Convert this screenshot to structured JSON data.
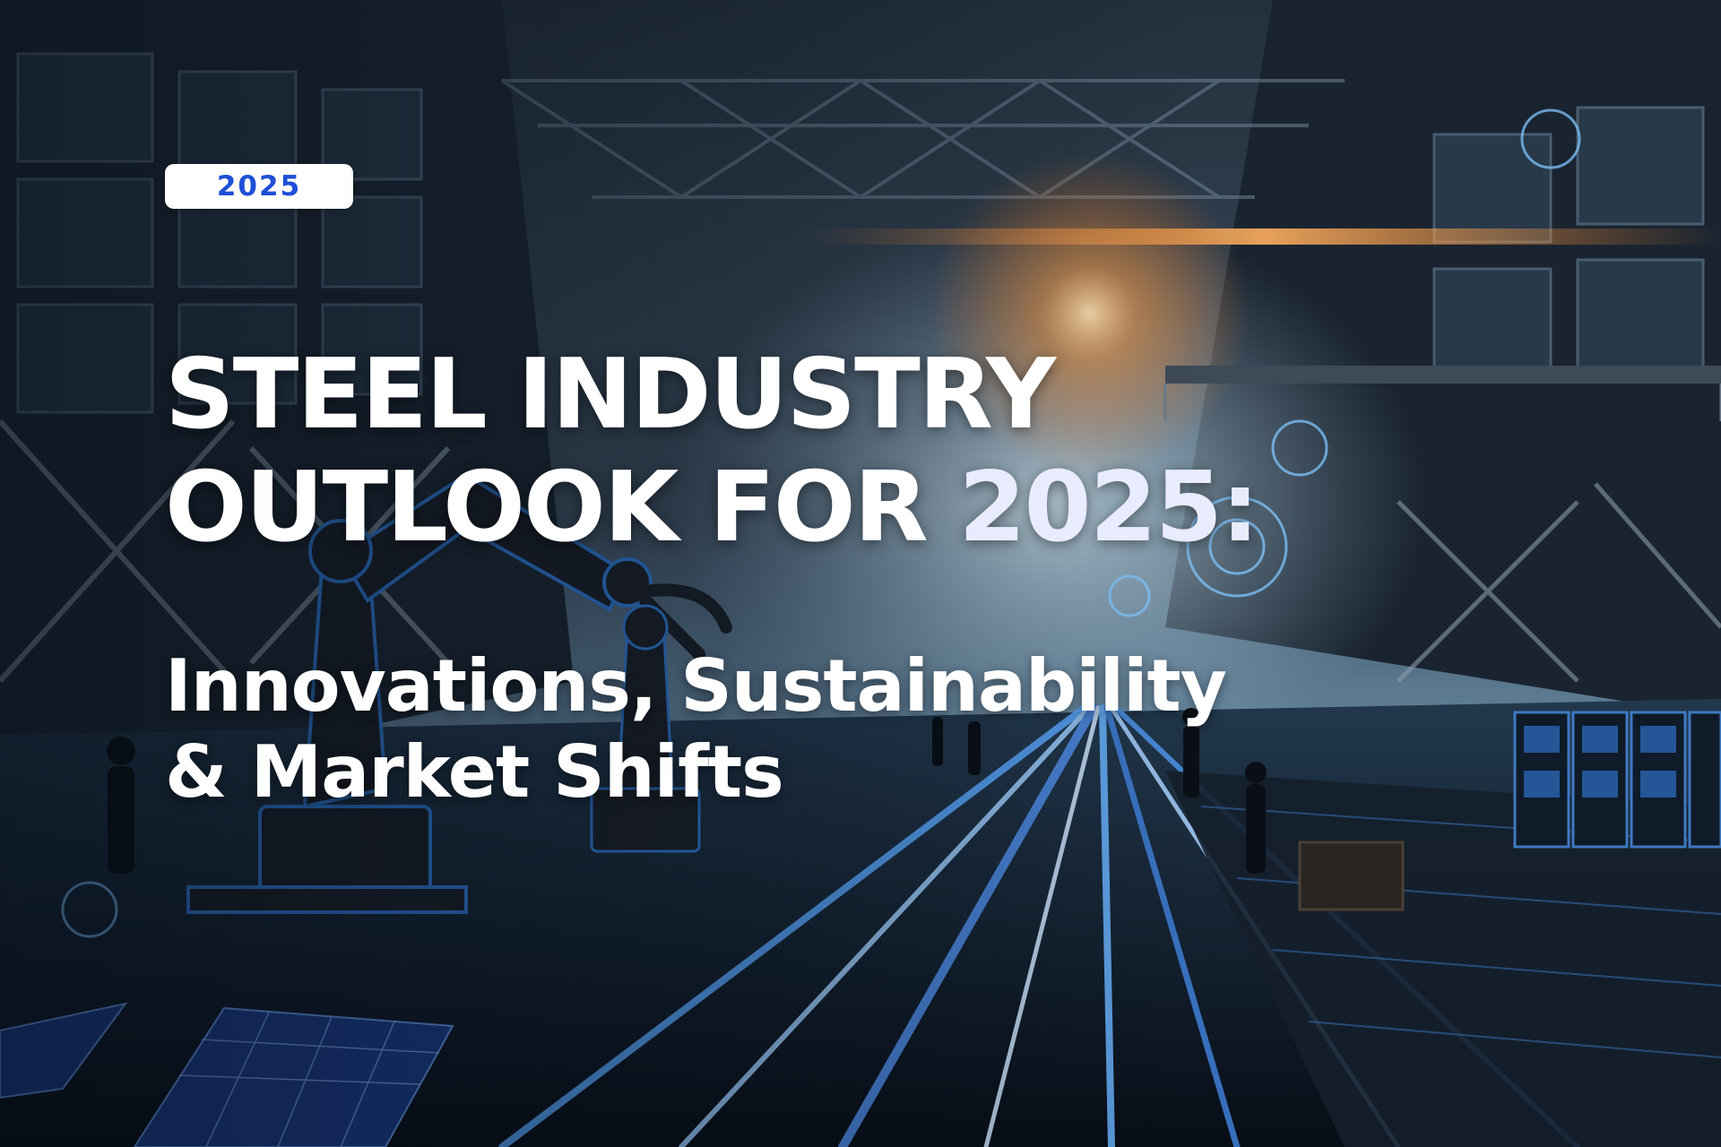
{
  "badge": {
    "label": "2025",
    "color": "#1f4fd6"
  },
  "title": {
    "line1": "STEEL INDUSTRY",
    "line2_prefix": "OUTLOOK FOR ",
    "line2_accent": "2025:"
  },
  "subtitle": {
    "line1": "Innovations, Sustainability",
    "line2": "& Market Shifts"
  },
  "colors": {
    "title": "#ffffff",
    "accent": "#e9ecff",
    "badge_bg": "#ffffff",
    "badge_text": "#1f4fd6"
  }
}
